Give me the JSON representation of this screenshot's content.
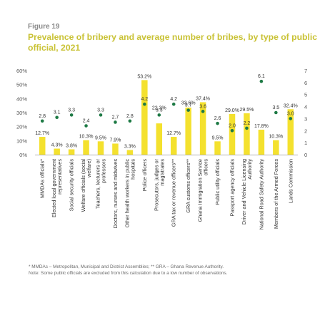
{
  "figure": {
    "label": "Figure 19",
    "title": "Prevalence of bribery and average number of bribes, by type of public official, 2021"
  },
  "colors": {
    "bar": "#f4e12e",
    "dot": "#1e7a45",
    "title": "#c9c235",
    "axis": "#9a9a9a"
  },
  "chart_data": {
    "type": "bar",
    "title": "Prevalence of bribery and average number of bribes, by type of public official, 2021",
    "categories": [
      "MMDAs officials*",
      "Elected local government representatives",
      "Social security officials",
      "Welfare officials (social welfare)",
      "Teachers, lecturers or professors",
      "Doctors, nurses and midwives",
      "Other health workers in public hospitals",
      "Police officers",
      "Prosecutors, judges or magistrates",
      "GRA tax or revenue officers**",
      "GRA customs officers**",
      "Ghana Immigration Service officers",
      "Public utility officials",
      "Passport agency officials",
      "Driver and Vehicle Licensing Authority",
      "National Road Safety Authority",
      "Members of the Armed Forces",
      "Lands Commission"
    ],
    "series": [
      {
        "type": "bar",
        "axis": "left",
        "values": [
          12.7,
          4.3,
          3.8,
          10.3,
          9.5,
          7.9,
          3.3,
          53.2,
          22.3,
          12.7,
          33.6,
          37.4,
          9.5,
          29.0,
          29.5,
          17.8,
          10.3,
          32.4
        ],
        "value_labels": [
          "12.7%",
          "4.3%",
          "3.8%",
          "10.3%",
          "9.5%",
          "7.9%",
          "3.3%",
          "53.2%",
          "22.3%",
          "12.7%",
          "33.6%",
          "37.4%",
          "9.5%",
          "29.0%",
          "29.5%",
          "17.8%",
          "10.3%",
          "32.4%"
        ]
      },
      {
        "type": "scatter",
        "axis": "right",
        "values": [
          2.8,
          3.1,
          3.3,
          2.4,
          3.3,
          2.7,
          2.8,
          4.2,
          3.3,
          4.2,
          3.7,
          3.6,
          2.6,
          2.0,
          2.2,
          6.1,
          3.5,
          3.0
        ],
        "value_labels": [
          "2.8",
          "3.1",
          "3.3",
          "2.4",
          "3.3",
          "2.7",
          "2.8",
          "4.2",
          "3.3",
          "4.2",
          "3.7",
          "3.6",
          "2.6",
          "2.0",
          "2.2",
          "6.1",
          "3.5",
          "3.0"
        ]
      }
    ],
    "y_left": {
      "ylim": [
        0,
        60
      ],
      "ticks": [
        0,
        10,
        20,
        30,
        40,
        50,
        60
      ],
      "tick_labels": [
        "0%",
        "10%",
        "20%",
        "30%",
        "40%",
        "50%",
        "60%"
      ]
    },
    "y_right": {
      "ylim": [
        0,
        7
      ],
      "ticks": [
        0,
        1,
        2,
        3,
        4,
        5,
        6,
        7
      ],
      "tick_labels": [
        "0",
        "1",
        "2",
        "3",
        "4",
        "5",
        "6",
        "7"
      ]
    },
    "grid": false,
    "legend": "none"
  },
  "notes": {
    "line1": "* MMDAs – Metropolitan, Municipal and District Assemblies; ** GRA – Ghana Revenue Authority.",
    "line2": "Note: Some public officials are excluded from this calculation due to a low number of observations."
  }
}
